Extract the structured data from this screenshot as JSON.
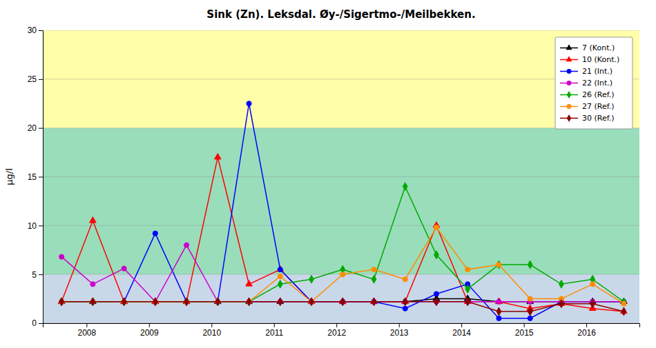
{
  "chart_data": {
    "type": "line",
    "title": "Sink (Zn). Leksdal. Øy-/Sigertmo-/Meilbekken.",
    "ylabel": "µg/l",
    "x": [
      2007.6,
      2008.1,
      2008.6,
      2009.1,
      2009.6,
      2010.1,
      2010.6,
      2011.1,
      2011.6,
      2012.1,
      2012.6,
      2013.1,
      2013.6,
      2014.1,
      2014.6,
      2015.1,
      2015.6,
      2016.1,
      2016.6
    ],
    "series": [
      {
        "name": "7 (Kont.)",
        "color": "#000000",
        "marker": "triangle",
        "values": [
          2.2,
          2.2,
          2.2,
          2.2,
          2.2,
          2.2,
          2.2,
          2.2,
          2.2,
          2.2,
          2.2,
          2.2,
          2.5,
          2.5,
          2.2,
          2.2,
          2.2,
          2.2,
          2.2
        ]
      },
      {
        "name": "10 (Kont.)",
        "color": "#FF0000",
        "marker": "triangle",
        "values": [
          2.2,
          10.5,
          2.2,
          2.2,
          2.2,
          17.0,
          4.0,
          5.5,
          2.2,
          2.2,
          2.2,
          2.2,
          10.0,
          2.2,
          2.2,
          1.5,
          2.0,
          1.5,
          1.2
        ]
      },
      {
        "name": "21 (Int.)",
        "color": "#0000FF",
        "marker": "circle",
        "values": [
          2.2,
          2.2,
          2.2,
          9.2,
          2.2,
          2.2,
          22.5,
          5.5,
          2.2,
          2.2,
          2.2,
          1.5,
          3.0,
          4.0,
          0.5,
          0.5,
          2.2,
          2.2,
          2.2
        ]
      },
      {
        "name": "22 (Int.)",
        "color": "#CC00CC",
        "marker": "circle",
        "values": [
          6.8,
          4.0,
          5.6,
          2.2,
          8.0,
          2.2,
          2.2,
          2.2,
          2.2,
          2.2,
          2.2,
          2.2,
          2.2,
          2.2,
          2.2,
          2.2,
          2.2,
          2.2,
          2.2
        ]
      },
      {
        "name": "26 (Ref.)",
        "color": "#00AA00",
        "marker": "diamond",
        "values": [
          2.2,
          2.2,
          2.2,
          2.2,
          2.2,
          2.2,
          2.2,
          4.0,
          4.5,
          5.5,
          4.5,
          14.0,
          7.0,
          3.5,
          6.0,
          6.0,
          4.0,
          4.5,
          2.2
        ]
      },
      {
        "name": "27 (Ref.)",
        "color": "#FF8C00",
        "marker": "circle",
        "values": [
          2.2,
          2.2,
          2.2,
          2.2,
          2.2,
          2.2,
          2.2,
          4.8,
          2.2,
          5.0,
          5.5,
          4.5,
          9.8,
          5.5,
          6.0,
          2.5,
          2.5,
          4.0,
          2.0
        ]
      },
      {
        "name": "30 (Ref.)",
        "color": "#8B0000",
        "marker": "diamond",
        "values": [
          2.2,
          2.2,
          2.2,
          2.2,
          2.2,
          2.2,
          2.2,
          2.2,
          2.2,
          2.2,
          2.2,
          2.2,
          2.2,
          2.2,
          1.2,
          1.2,
          2.0,
          2.0,
          1.2
        ]
      }
    ],
    "zones": [
      {
        "from": 0,
        "to": 5,
        "color": "#C8D8E8"
      },
      {
        "from": 5,
        "to": 20,
        "color": "#99DDBB"
      },
      {
        "from": 20,
        "to": 30,
        "color": "#FFFFAA"
      }
    ],
    "xlim": [
      2007.3,
      2016.85
    ],
    "xticks": [
      2008,
      2009,
      2010,
      2011,
      2012,
      2013,
      2014,
      2015,
      2016
    ],
    "ylim": [
      0,
      30
    ],
    "yticks": [
      0,
      5,
      10,
      15,
      20,
      25,
      30
    ],
    "grid": "y",
    "legend": "upper right"
  }
}
